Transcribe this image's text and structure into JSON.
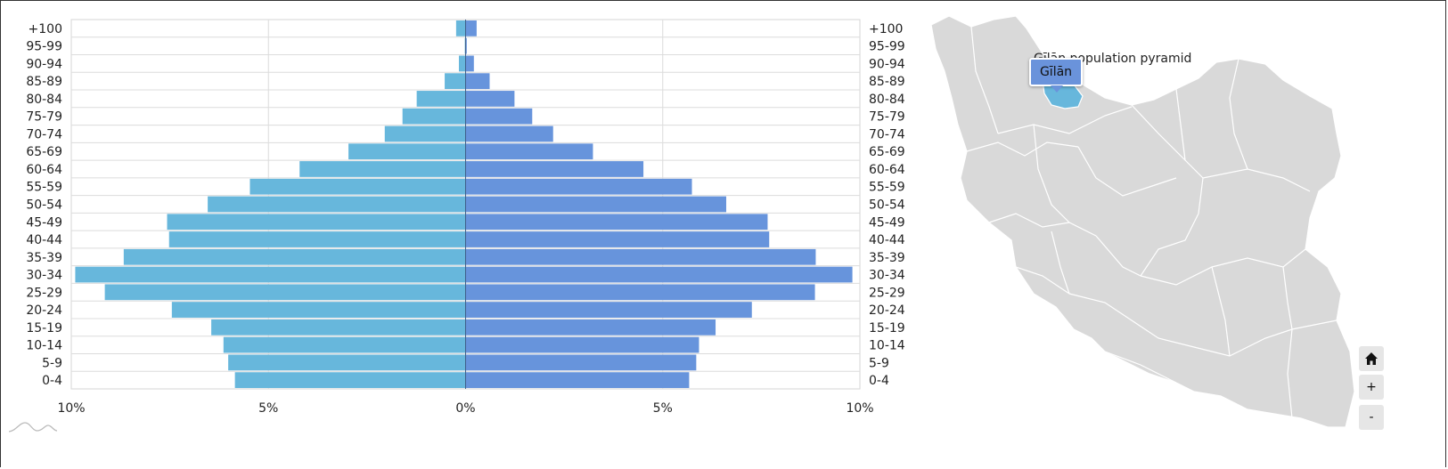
{
  "chart_data": {
    "type": "bar",
    "orientation": "horizontal",
    "layout": "population-pyramid",
    "categories": [
      "0-4",
      "5-9",
      "10-14",
      "15-19",
      "20-24",
      "25-29",
      "30-34",
      "35-39",
      "40-44",
      "45-49",
      "50-54",
      "55-59",
      "60-64",
      "65-69",
      "70-74",
      "75-79",
      "80-84",
      "85-89",
      "90-94",
      "95-99",
      "+100"
    ],
    "series": [
      {
        "side": "left",
        "color": "#67b7dc",
        "values": [
          5.85,
          6.02,
          6.14,
          6.45,
          7.45,
          9.15,
          9.9,
          8.67,
          7.52,
          7.57,
          6.54,
          5.47,
          4.21,
          2.97,
          2.05,
          1.6,
          1.24,
          0.53,
          0.17,
          0.02,
          0.24
        ]
      },
      {
        "side": "right",
        "color": "#6794dc",
        "values": [
          5.67,
          5.85,
          5.92,
          6.34,
          7.26,
          8.86,
          9.81,
          8.88,
          7.7,
          7.66,
          6.61,
          5.74,
          4.51,
          3.23,
          2.22,
          1.69,
          1.24,
          0.61,
          0.21,
          0.03,
          0.28
        ]
      }
    ],
    "xlim": [
      -10,
      10
    ],
    "xticks": [
      "10%",
      "5%",
      "0%",
      "5%",
      "10%"
    ],
    "grid": true
  },
  "map": {
    "title": "Gīlān population pyramid",
    "tooltip": "Gīlān",
    "selected_color": "#67b7dc",
    "land_color": "#d9d9d9",
    "controls": {
      "home_icon": "home-icon",
      "zoom_in": "+",
      "zoom_out": "-"
    }
  }
}
